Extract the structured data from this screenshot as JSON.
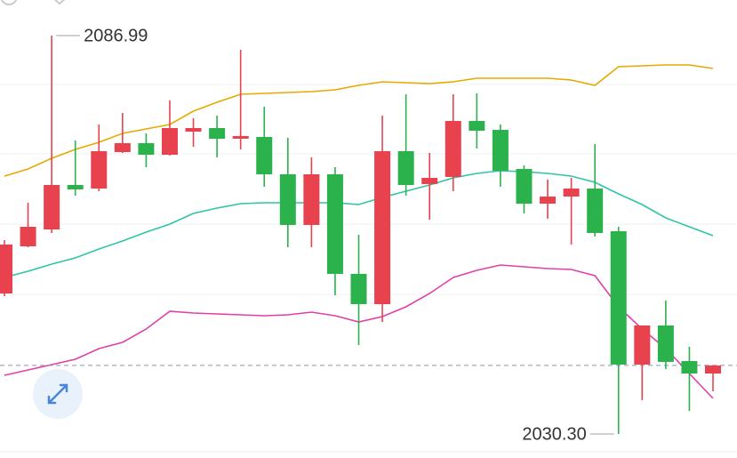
{
  "chart_data": {
    "type": "candlestick",
    "open": [
      2050.29,
      2057.0,
      2059.4,
      2065.73,
      2065.22,
      2070.41,
      2071.68,
      2070.03,
      2073.32,
      2073.83,
      2072.31,
      2072.56,
      2067.25,
      2060.04,
      2067.25,
      2053.08,
      2048.77,
      2070.54,
      2065.86,
      2066.87,
      2074.84,
      2073.57,
      2068.01,
      2063.07,
      2064.08,
      2065.22,
      2059.15,
      2040.17,
      2045.74,
      2040.68,
      2038.9
    ],
    "high": [
      2057.88,
      2063.2,
      2086.99,
      2072.06,
      2074.33,
      2075.98,
      2073.07,
      2077.75,
      2075.22,
      2075.6,
      2084.96,
      2076.87,
      2072.44,
      2069.66,
      2068.26,
      2058.64,
      2075.6,
      2078.64,
      2070.29,
      2078.64,
      2078.76,
      2074.33,
      2068.51,
      2066.49,
      2066.74,
      2071.55,
      2059.78,
      2045.74,
      2049.28,
      2042.7,
      2040.05
    ],
    "low": [
      2049.91,
      2056.87,
      2058.9,
      2064.21,
      2064.84,
      2070.29,
      2068.26,
      2069.91,
      2071.17,
      2069.66,
      2070.79,
      2065.48,
      2056.87,
      2056.87,
      2050.04,
      2042.95,
      2046.24,
      2064.21,
      2060.8,
      2064.84,
      2070.92,
      2065.48,
      2061.68,
      2060.92,
      2057.25,
      2058.39,
      2030.3,
      2035.11,
      2039.54,
      2033.59,
      2036.37
    ],
    "close": [
      2057.25,
      2059.78,
      2065.73,
      2065.1,
      2070.54,
      2071.68,
      2070.03,
      2073.83,
      2073.83,
      2072.31,
      2072.69,
      2067.25,
      2060.04,
      2067.25,
      2053.08,
      2048.77,
      2070.54,
      2065.73,
      2066.74,
      2074.84,
      2073.45,
      2067.75,
      2063.07,
      2064.08,
      2065.22,
      2058.9,
      2040.17,
      2045.74,
      2040.55,
      2038.9,
      2040.05
    ],
    "up_color": "#e8424f",
    "down_color": "#2bb24c",
    "series": [
      {
        "color": "#e8a800",
        "values": [
          2067.0,
          2068.01,
          2069.53,
          2070.79,
          2071.8,
          2073.07,
          2073.7,
          2074.33,
          2076.23,
          2077.5,
          2078.64,
          2078.76,
          2078.89,
          2079.02,
          2079.27,
          2079.9,
          2080.41,
          2080.28,
          2080.16,
          2080.41,
          2080.91,
          2080.91,
          2080.91,
          2080.91,
          2080.66,
          2079.9,
          2082.56,
          2082.69,
          2082.81,
          2082.81,
          2082.31
        ]
      },
      {
        "color": "#2ec4a8",
        "values": [
          2052.57,
          2053.46,
          2054.47,
          2055.35,
          2056.62,
          2057.76,
          2059.02,
          2060.16,
          2061.68,
          2062.44,
          2063.07,
          2063.2,
          2063.2,
          2063.2,
          2063.2,
          2062.95,
          2063.96,
          2064.84,
          2065.73,
          2066.74,
          2067.38,
          2067.75,
          2067.63,
          2067.38,
          2067.0,
          2066.11,
          2064.46,
          2062.95,
          2061.05,
          2059.78,
          2058.52
        ]
      },
      {
        "color": "#e040a8",
        "values": [
          2038.65,
          2039.41,
          2040.17,
          2040.93,
          2042.45,
          2043.33,
          2045.23,
          2047.76,
          2047.51,
          2047.38,
          2047.25,
          2047.13,
          2047.25,
          2047.63,
          2047.13,
          2046.24,
          2047.0,
          2048.39,
          2050.29,
          2052.57,
          2053.58,
          2054.34,
          2054.09,
          2053.84,
          2053.71,
          2052.82,
          2048.39,
          2045.23,
          2042.45,
          2038.9,
          2035.36
        ]
      }
    ],
    "annotations": [
      {
        "label": "2086.99",
        "value": 2086.99
      },
      {
        "label": "2030.30",
        "value": 2030.3
      }
    ],
    "ylim": [
      2026.88,
      2092.05
    ]
  }
}
